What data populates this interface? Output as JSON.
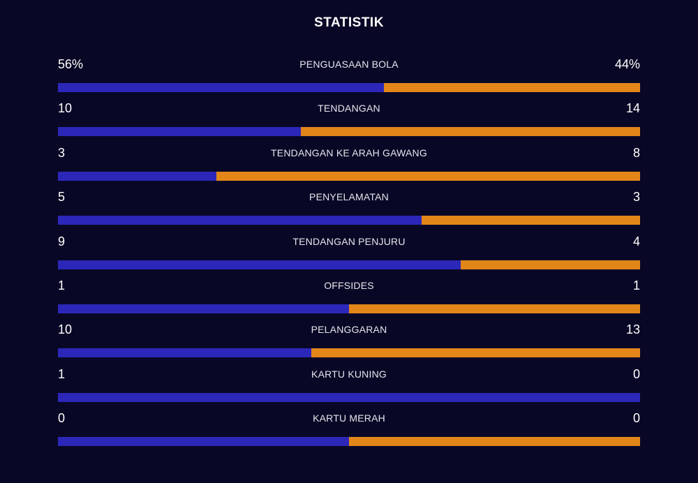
{
  "title": "STATISTIK",
  "colors": {
    "background": "#080826",
    "home": "#2c27b8",
    "away": "#e2861a"
  },
  "stats": [
    {
      "label": "PENGUASAAN BOLA",
      "left": "56%",
      "right": "44%",
      "left_value": 56,
      "right_value": 44
    },
    {
      "label": "TENDANGAN",
      "left": "10",
      "right": "14",
      "left_value": 10,
      "right_value": 14
    },
    {
      "label": "TENDANGAN KE ARAH GAWANG",
      "left": "3",
      "right": "8",
      "left_value": 3,
      "right_value": 8
    },
    {
      "label": "PENYELAMATAN",
      "left": "5",
      "right": "3",
      "left_value": 5,
      "right_value": 3
    },
    {
      "label": "TENDANGAN PENJURU",
      "left": "9",
      "right": "4",
      "left_value": 9,
      "right_value": 4
    },
    {
      "label": "OFFSIDES",
      "left": "1",
      "right": "1",
      "left_value": 1,
      "right_value": 1
    },
    {
      "label": "PELANGGARAN",
      "left": "10",
      "right": "13",
      "left_value": 10,
      "right_value": 13
    },
    {
      "label": "KARTU KUNING",
      "left": "1",
      "right": "0",
      "left_value": 1,
      "right_value": 0
    },
    {
      "label": "KARTU MERAH",
      "left": "0",
      "right": "0",
      "left_value": 0,
      "right_value": 0
    }
  ]
}
